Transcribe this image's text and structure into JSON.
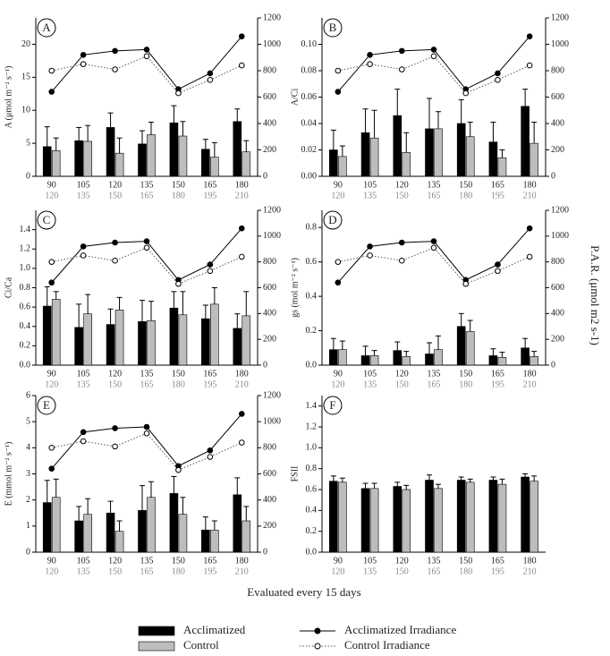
{
  "xlabel": "Evaluated every 15 days",
  "y2label": "P.A.R. (μmol m2 s-1)",
  "legend": [
    {
      "name": "Acclimatized",
      "color": "#000000",
      "kind": "bar"
    },
    {
      "name": "Control",
      "color": "#bdbdbd",
      "kind": "bar"
    },
    {
      "name": "Acclimatized Irradiance",
      "color": "#000000",
      "kind": "line"
    },
    {
      "name": "Control Irradiance",
      "color": "#555555",
      "kind": "dotted"
    }
  ],
  "chart_data": [
    {
      "type": "bar",
      "label": "A",
      "ylabel": "A (μmol m⁻² s⁻¹)",
      "categories": [
        "90",
        "105",
        "120",
        "135",
        "150",
        "165",
        "180"
      ],
      "control_categories": [
        "120",
        "135",
        "150",
        "165",
        "180",
        "195",
        "210"
      ],
      "ylim": [
        0,
        24
      ],
      "yticks": [
        0,
        5,
        10,
        15,
        20
      ],
      "y2lim": [
        0,
        1200
      ],
      "y2ticks": [
        0,
        200,
        400,
        600,
        800,
        1000,
        1200
      ],
      "series": [
        {
          "values": [
            4.5,
            5.4,
            7.4,
            4.9,
            8.1,
            4.1,
            8.3
          ],
          "errors": [
            3,
            2,
            2.2,
            2,
            2.6,
            1.5,
            1.9
          ]
        },
        {
          "values": [
            3.9,
            5.3,
            3.5,
            6.3,
            6.1,
            2.9,
            3.7
          ],
          "errors": [
            1.9,
            2.4,
            2.3,
            1.9,
            2.2,
            2.2,
            1.7
          ]
        },
        {
          "axis": "y2",
          "values": [
            640,
            920,
            950,
            960,
            660,
            780,
            1060
          ]
        },
        {
          "axis": "y2",
          "values": [
            800,
            850,
            810,
            910,
            630,
            730,
            840
          ]
        }
      ]
    },
    {
      "type": "bar",
      "label": "B",
      "ylabel": "A/Ci",
      "categories": [
        "90",
        "105",
        "120",
        "135",
        "150",
        "165",
        "180"
      ],
      "control_categories": [
        "120",
        "135",
        "150",
        "165",
        "180",
        "195",
        "210"
      ],
      "ylim": [
        0,
        0.12
      ],
      "yticks": [
        {
          "value": 0,
          "label": "0.00"
        },
        {
          "value": 0.02,
          "label": "0.02"
        },
        {
          "value": 0.04,
          "label": "0.04"
        },
        {
          "value": 0.06,
          "label": "0.06"
        },
        {
          "value": 0.08,
          "label": "0.08"
        },
        {
          "value": 0.1,
          "label": "0.10"
        }
      ],
      "y2lim": [
        0,
        1200
      ],
      "y2ticks": [
        0,
        200,
        400,
        600,
        800,
        1000,
        1200
      ],
      "series": [
        {
          "values": [
            0.02,
            0.033,
            0.046,
            0.036,
            0.04,
            0.026,
            0.053
          ],
          "errors": [
            0.015,
            0.018,
            0.02,
            0.023,
            0.018,
            0.015,
            0.013
          ]
        },
        {
          "values": [
            0.015,
            0.029,
            0.018,
            0.036,
            0.03,
            0.014,
            0.025
          ],
          "errors": [
            0.008,
            0.021,
            0.015,
            0.013,
            0.011,
            0.006,
            0.016
          ]
        },
        {
          "axis": "y2",
          "values": [
            640,
            920,
            950,
            960,
            660,
            780,
            1060
          ]
        },
        {
          "axis": "y2",
          "values": [
            800,
            850,
            810,
            910,
            630,
            730,
            840
          ]
        }
      ]
    },
    {
      "type": "bar",
      "label": "C",
      "ylabel": "Ci/Ca",
      "categories": [
        "90",
        "105",
        "120",
        "135",
        "150",
        "165",
        "180"
      ],
      "control_categories": [
        "120",
        "135",
        "150",
        "165",
        "180",
        "195",
        "210"
      ],
      "ylim": [
        0,
        1.6
      ],
      "yticks": [
        {
          "value": 0,
          "label": "0.0"
        },
        0.2,
        0.4,
        0.6,
        0.8,
        {
          "value": 1,
          "label": "1.0"
        },
        1.2,
        1.4
      ],
      "y2lim": [
        0,
        1200
      ],
      "y2ticks": [
        0,
        200,
        400,
        600,
        800,
        1000,
        1200
      ],
      "series": [
        {
          "values": [
            0.61,
            0.39,
            0.42,
            0.45,
            0.59,
            0.48,
            0.38
          ],
          "errors": [
            0.2,
            0.24,
            0.16,
            0.22,
            0.17,
            0.14,
            0.15
          ]
        },
        {
          "values": [
            0.68,
            0.53,
            0.57,
            0.46,
            0.52,
            0.63,
            0.51
          ],
          "errors": [
            0.08,
            0.2,
            0.13,
            0.2,
            0.24,
            0.17,
            0.25
          ]
        },
        {
          "axis": "y2",
          "values": [
            640,
            920,
            950,
            960,
            660,
            780,
            1060
          ]
        },
        {
          "axis": "y2",
          "values": [
            800,
            850,
            810,
            910,
            630,
            730,
            840
          ]
        }
      ]
    },
    {
      "type": "bar",
      "label": "D",
      "ylabel": "gs (mol m⁻² s⁻¹)",
      "categories": [
        "90",
        "105",
        "120",
        "135",
        "150",
        "165",
        "180"
      ],
      "control_categories": [
        "120",
        "135",
        "150",
        "165",
        "180",
        "195",
        "210"
      ],
      "ylim": [
        0,
        0.9
      ],
      "yticks": [
        {
          "value": 0,
          "label": "0.0"
        },
        0.2,
        0.4,
        0.6,
        0.8
      ],
      "y2lim": [
        0,
        1200
      ],
      "y2ticks": [
        0,
        200,
        400,
        600,
        800,
        1000,
        1200
      ],
      "series": [
        {
          "values": [
            0.09,
            0.055,
            0.085,
            0.065,
            0.225,
            0.055,
            0.1
          ],
          "errors": [
            0.065,
            0.055,
            0.05,
            0.065,
            0.075,
            0.04,
            0.055
          ]
        },
        {
          "values": [
            0.09,
            0.055,
            0.05,
            0.09,
            0.195,
            0.045,
            0.05
          ],
          "errors": [
            0.05,
            0.03,
            0.03,
            0.08,
            0.065,
            0.03,
            0.03
          ]
        },
        {
          "axis": "y2",
          "values": [
            640,
            920,
            950,
            960,
            660,
            780,
            1060
          ]
        },
        {
          "axis": "y2",
          "values": [
            800,
            850,
            810,
            910,
            630,
            730,
            840
          ]
        }
      ]
    },
    {
      "type": "bar",
      "label": "E",
      "ylabel": "E (mmol m⁻² s⁻¹)",
      "categories": [
        "90",
        "105",
        "120",
        "135",
        "150",
        "165",
        "180"
      ],
      "control_categories": [
        "120",
        "135",
        "150",
        "165",
        "180",
        "195",
        "210"
      ],
      "ylim": [
        0,
        6
      ],
      "yticks": [
        0,
        1,
        2,
        3,
        4,
        5,
        6
      ],
      "y2lim": [
        0,
        1200
      ],
      "y2ticks": [
        0,
        200,
        400,
        600,
        800,
        1000,
        1200
      ],
      "series": [
        {
          "values": [
            1.9,
            1.2,
            1.5,
            1.6,
            2.25,
            0.85,
            2.2
          ],
          "errors": [
            0.85,
            0.55,
            0.45,
            0.95,
            0.65,
            0.5,
            0.65
          ]
        },
        {
          "values": [
            2.1,
            1.45,
            0.8,
            2.1,
            1.45,
            0.85,
            1.2
          ],
          "errors": [
            0.7,
            0.6,
            0.4,
            0.6,
            0.65,
            0.35,
            0.55
          ]
        },
        {
          "axis": "y2",
          "values": [
            640,
            920,
            950,
            960,
            660,
            780,
            1060
          ]
        },
        {
          "axis": "y2",
          "values": [
            800,
            850,
            810,
            910,
            630,
            730,
            840
          ]
        }
      ]
    },
    {
      "type": "bar",
      "label": "F",
      "ylabel": "FSII",
      "categories": [
        "90",
        "105",
        "120",
        "135",
        "150",
        "165",
        "180"
      ],
      "control_categories": [
        "120",
        "135",
        "150",
        "165",
        "180",
        "195",
        "210"
      ],
      "ylim": [
        0,
        1.5
      ],
      "yticks": [
        {
          "value": 0,
          "label": "0.0"
        },
        0.2,
        0.4,
        0.6,
        0.8,
        {
          "value": 1,
          "label": "1.0"
        },
        1.2,
        1.4
      ],
      "series": [
        {
          "values": [
            0.68,
            0.61,
            0.63,
            0.69,
            0.69,
            0.69,
            0.72
          ],
          "errors": [
            0.05,
            0.05,
            0.04,
            0.05,
            0.03,
            0.03,
            0.03
          ]
        },
        {
          "values": [
            0.67,
            0.61,
            0.6,
            0.61,
            0.67,
            0.65,
            0.68
          ],
          "errors": [
            0.04,
            0.05,
            0.04,
            0.04,
            0.03,
            0.05,
            0.05
          ]
        }
      ]
    }
  ]
}
